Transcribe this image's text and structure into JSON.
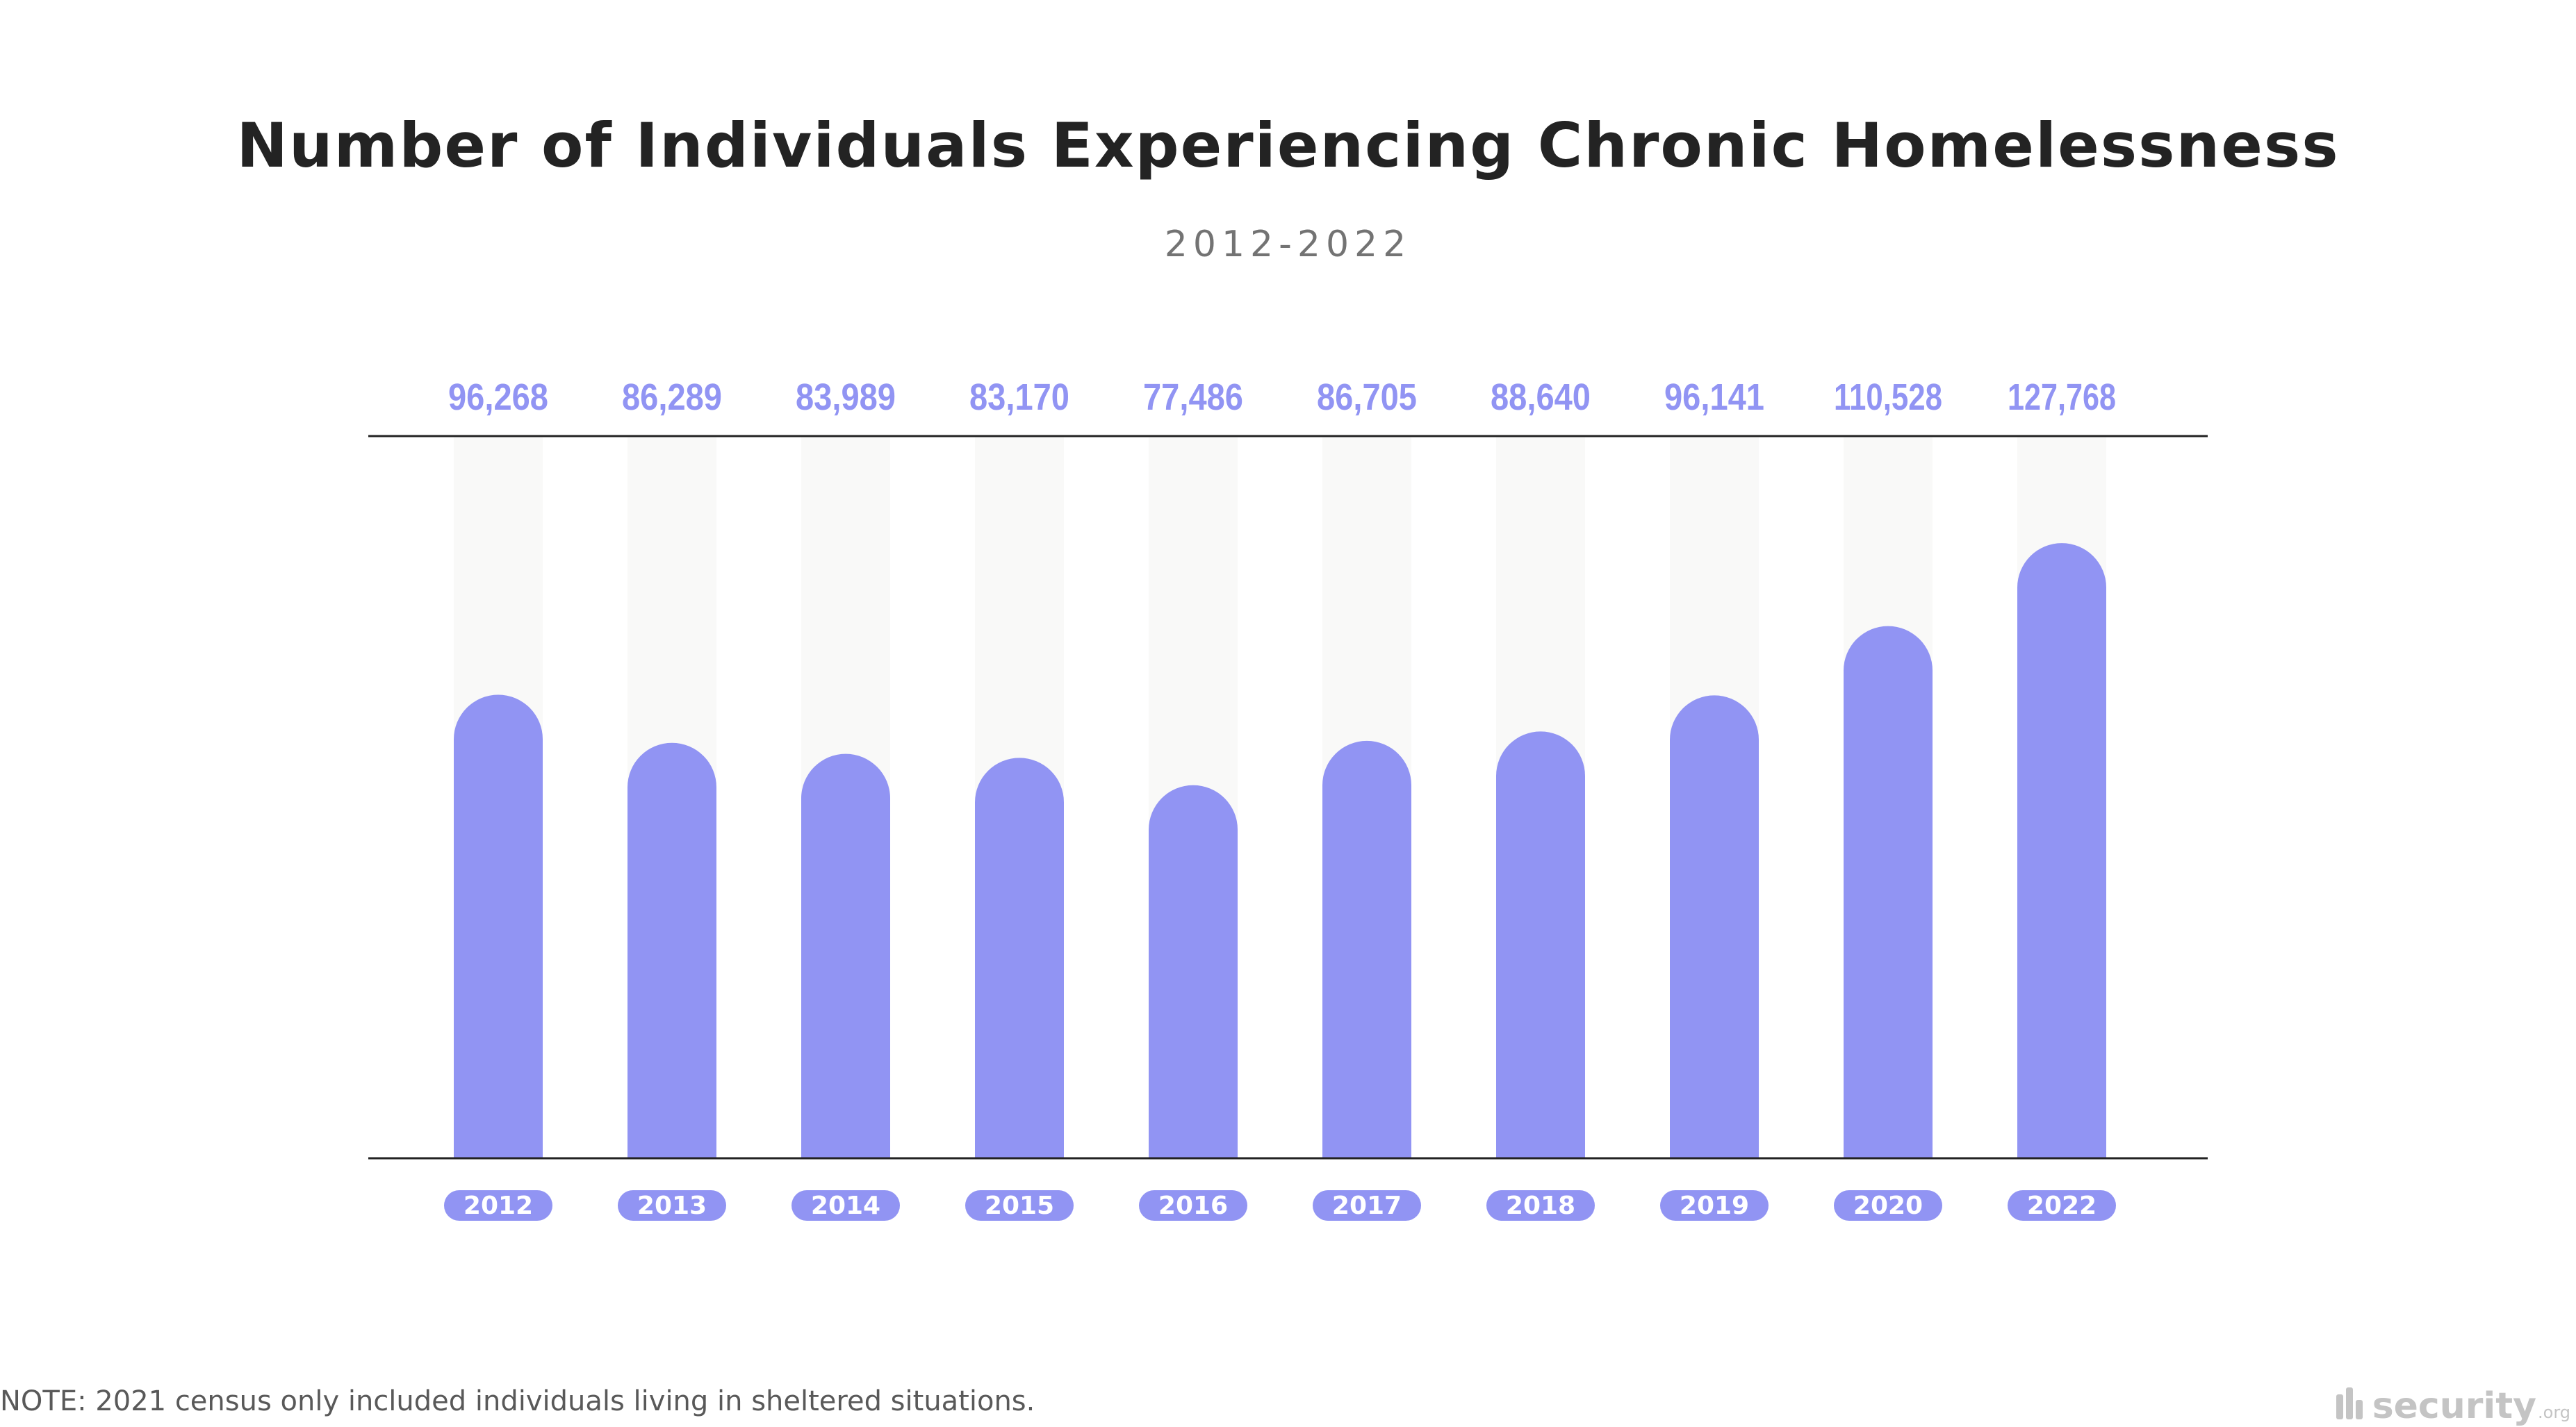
{
  "colors": {
    "bar": "#9194F3",
    "track": "#F9F9F8",
    "value_label": "#9194F3",
    "axis": "#222222",
    "pill_text": "#ffffff"
  },
  "chart_data": {
    "type": "bar",
    "title": "Number of Individuals Experiencing Chronic Homelessness",
    "subtitle": "2012-2022",
    "categories": [
      "2012",
      "2013",
      "2014",
      "2015",
      "2016",
      "2017",
      "2018",
      "2019",
      "2020",
      "2022"
    ],
    "values": [
      96268,
      86289,
      83989,
      83170,
      77486,
      86705,
      88640,
      96141,
      110528,
      127768
    ],
    "value_labels": [
      "96,268",
      "86,289",
      "83,989",
      "83,170",
      "77,486",
      "86,705",
      "88,640",
      "96,141",
      "110,528",
      "127,768"
    ],
    "ylim": [
      0,
      150000
    ],
    "grid": false,
    "legend": "none"
  },
  "footer": {
    "note": "NOTE: 2021 census only included individuals living in sheltered situations.",
    "brand_name": "security",
    "brand_tld": ".org",
    "brand_icon": "security-logo-icon"
  }
}
